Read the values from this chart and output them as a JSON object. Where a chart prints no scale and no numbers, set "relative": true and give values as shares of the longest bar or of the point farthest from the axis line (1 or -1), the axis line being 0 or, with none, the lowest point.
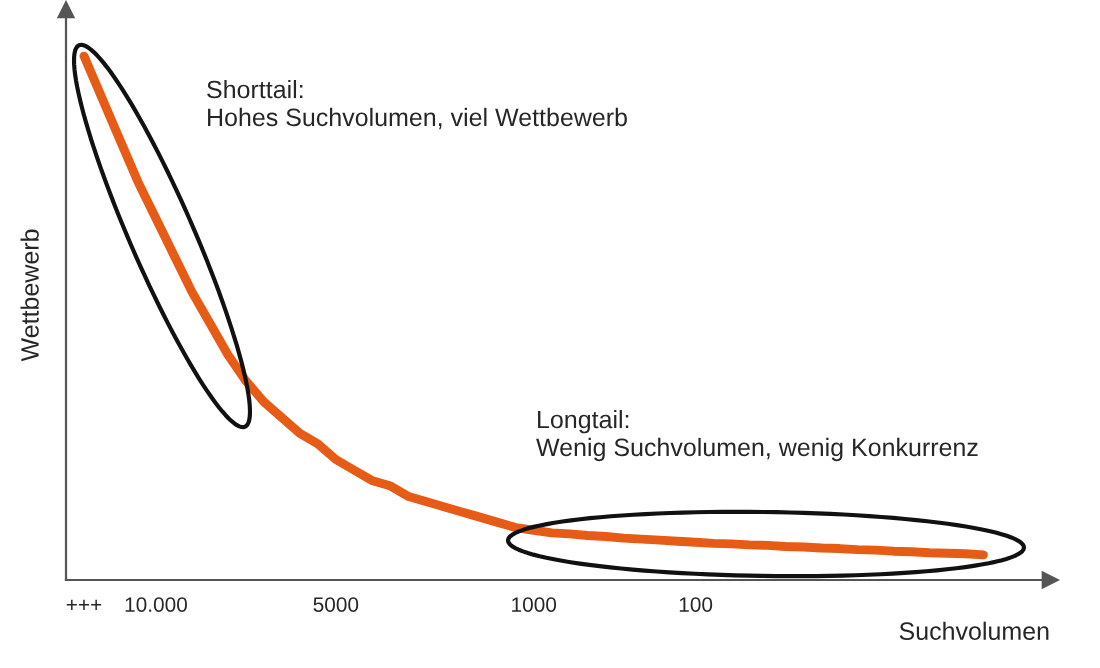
{
  "chart_data": {
    "type": "line",
    "relative": true,
    "xlabel": "Suchvolumen",
    "ylabel": "Wettbewerb",
    "categories": [
      "+++",
      null,
      null,
      null,
      "10.000",
      null,
      null,
      null,
      null,
      null,
      null,
      null,
      null,
      null,
      "5000",
      null,
      null,
      null,
      null,
      null,
      null,
      null,
      null,
      null,
      null,
      "1000",
      null,
      null,
      null,
      null,
      null,
      null,
      null,
      null,
      "100",
      null,
      null,
      null,
      null,
      null,
      null,
      null,
      null,
      null,
      null,
      null,
      null,
      null,
      null,
      null,
      null
    ],
    "series": [
      {
        "color": "#e65c17",
        "values": [
          1.0,
          0.92,
          0.84,
          0.76,
          0.69,
          0.62,
          0.55,
          0.49,
          0.43,
          0.38,
          0.34,
          0.31,
          0.28,
          0.26,
          0.23,
          0.21,
          0.19,
          0.18,
          0.16,
          0.15,
          0.14,
          0.13,
          0.12,
          0.11,
          0.1,
          0.095,
          0.09,
          0.088,
          0.085,
          0.083,
          0.08,
          0.078,
          0.076,
          0.074,
          0.072,
          0.07,
          0.069,
          0.067,
          0.066,
          0.064,
          0.063,
          0.061,
          0.06,
          0.058,
          0.057,
          0.055,
          0.054,
          0.052,
          0.051,
          0.05,
          0.048
        ]
      }
    ],
    "annotations": [
      "Shorttail:\nHohes Suchvolumen, viel Wettbewerb",
      "Longtail:\nWenig Suchvolumen, wenig Konkurrenz"
    ],
    "grid": false,
    "marker": "none",
    "line_style": "solid"
  }
}
